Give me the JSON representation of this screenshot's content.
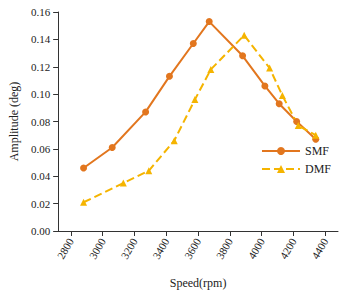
{
  "chart_data": {
    "type": "line",
    "x_label": "Speed(rpm)",
    "y_label": "Amplitude (deg)",
    "xlim": [
      2720,
      4480
    ],
    "xticks": [
      2800,
      3000,
      3200,
      3400,
      3600,
      3800,
      4000,
      4200,
      4400
    ],
    "ylim": [
      0,
      0.16
    ],
    "yticks": [
      {
        "value": 0,
        "label": "0.00"
      },
      0.02,
      0.04,
      0.06,
      0.08,
      {
        "value": 0.1,
        "label": "0.10"
      },
      0.12,
      0.14,
      0.16
    ],
    "grid": false,
    "legend": "right",
    "series": [
      {
        "name": "SMF",
        "color": "#e2761e",
        "marker": "circle",
        "line_style": "solid",
        "x": [
          2880,
          3060,
          3270,
          3420,
          3570,
          3670,
          3880,
          4020,
          4110,
          4220,
          4340
        ],
        "values": [
          0.046,
          0.061,
          0.087,
          0.113,
          0.137,
          0.153,
          0.128,
          0.106,
          0.093,
          0.08,
          0.067
        ]
      },
      {
        "name": "DMF",
        "color": "#f5b400",
        "marker": "triangle",
        "line_style": "dashed",
        "x": [
          2880,
          3130,
          3290,
          3450,
          3580,
          3680,
          3890,
          4050,
          4130,
          4230,
          4340
        ],
        "values": [
          0.021,
          0.035,
          0.044,
          0.066,
          0.096,
          0.118,
          0.143,
          0.119,
          0.099,
          0.077,
          0.07
        ]
      }
    ]
  }
}
